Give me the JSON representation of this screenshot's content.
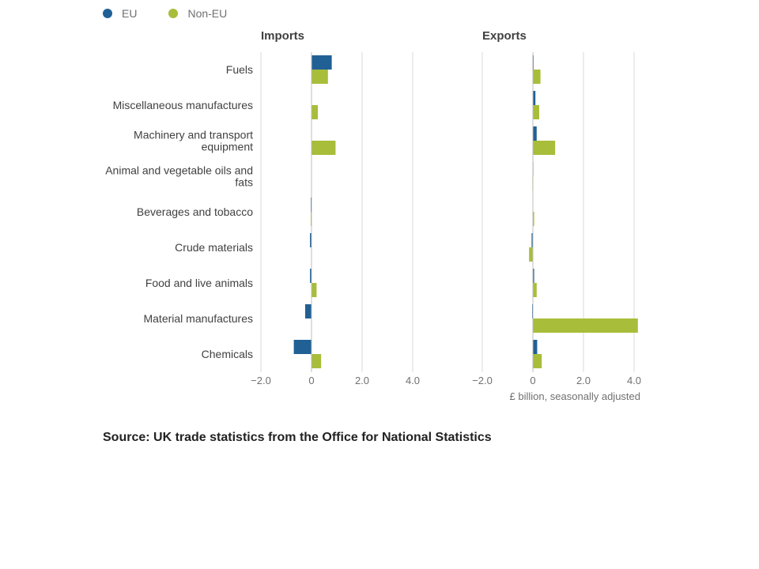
{
  "legend": [
    {
      "name": "EU",
      "color": "#206095"
    },
    {
      "name": "Non-EU",
      "color": "#a8bd3a"
    }
  ],
  "chart_data": {
    "type": "bar",
    "orientation": "horizontal",
    "categories": [
      "Fuels",
      "Miscellaneous manufactures",
      "Machinery and transport equipment",
      "Animal and vegetable oils and fats",
      "Beverages and tobacco",
      "Crude materials",
      "Food and live animals",
      "Material manufactures",
      "Chemicals"
    ],
    "category_lines": [
      [
        "Fuels"
      ],
      [
        "Miscellaneous manufactures"
      ],
      [
        "Machinery and transport",
        "equipment"
      ],
      [
        "Animal and vegetable oils and",
        "fats"
      ],
      [
        "Beverages and tobacco"
      ],
      [
        "Crude materials"
      ],
      [
        "Food and live animals"
      ],
      [
        "Material manufactures"
      ],
      [
        "Chemicals"
      ]
    ],
    "panels": [
      {
        "title": "Imports",
        "series": [
          {
            "name": "EU",
            "values": [
              0.8,
              0.0,
              0.0,
              0.0,
              -0.03,
              -0.06,
              -0.06,
              -0.25,
              -0.7
            ]
          },
          {
            "name": "Non-EU",
            "values": [
              0.65,
              0.25,
              0.95,
              0.0,
              -0.03,
              0.0,
              0.2,
              0.0,
              0.38
            ]
          }
        ]
      },
      {
        "title": "Exports",
        "series": [
          {
            "name": "EU",
            "values": [
              0.03,
              0.1,
              0.15,
              0.02,
              0.0,
              -0.05,
              0.05,
              -0.03,
              0.17
            ]
          },
          {
            "name": "Non-EU",
            "values": [
              0.3,
              0.25,
              0.88,
              -0.02,
              0.05,
              -0.15,
              0.15,
              4.15,
              0.35
            ]
          }
        ]
      }
    ],
    "xlim": [
      -2.0,
      4.2
    ],
    "xticks": [
      -2.0,
      0,
      2.0,
      4.0
    ],
    "xtick_labels": [
      "−2.0",
      "0",
      "2.0",
      "4.0"
    ],
    "xlabel": "£ billion, seasonally adjusted",
    "grid": true,
    "legend_position": "top-left"
  },
  "source": "Source: UK trade statistics from the Office for National Statistics"
}
